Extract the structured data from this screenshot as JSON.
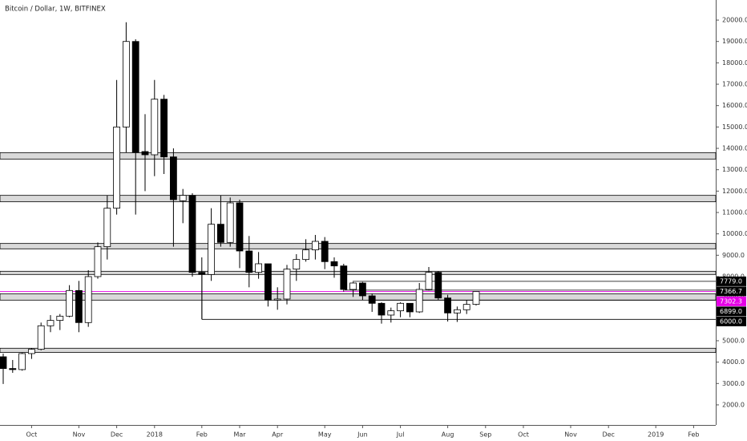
{
  "chart_data": {
    "type": "candlestick",
    "title": "Bitcoin / Dollar, 1W, BITFINEX",
    "categories": [
      null,
      null,
      null,
      "Oct",
      null,
      null,
      null,
      null,
      "Nov",
      null,
      null,
      null,
      "Dec",
      null,
      null,
      null,
      "2018",
      null,
      null,
      null,
      null,
      "Feb",
      null,
      null,
      null,
      "Mar",
      null,
      null,
      null,
      "Apr",
      null,
      null,
      null,
      null,
      "May",
      null,
      null,
      null,
      "Jun",
      null,
      null,
      null,
      "Jul",
      null,
      null,
      null,
      null,
      "Aug",
      null,
      null,
      null,
      "Sep",
      null,
      null,
      null,
      "Oct",
      null,
      null,
      null,
      null,
      "Nov",
      null,
      null,
      null,
      "Dec",
      null,
      null,
      null,
      null,
      "2019",
      null,
      null,
      null,
      "Feb"
    ],
    "open": [
      4250,
      3700,
      3650,
      4400,
      4600,
      5700,
      5950,
      6150,
      7350,
      5850,
      8000,
      9400,
      11200,
      15000,
      19000,
      13850,
      13700,
      16300,
      13600,
      11550,
      11800,
      8200,
      8100,
      10450,
      9600,
      11450,
      9200,
      8200,
      8600,
      6900,
      6950,
      8350,
      8800,
      9250,
      9650,
      8700,
      8500,
      7400,
      7700,
      7100,
      6750,
      6200,
      6400,
      6750,
      6350,
      7400,
      8200,
      7000,
      6300,
      6450,
      6700,
      null,
      null,
      null,
      null,
      null,
      null,
      null,
      null,
      null,
      null,
      null,
      null,
      null,
      null,
      null,
      null,
      null,
      null,
      null,
      null,
      null,
      null,
      null
    ],
    "high": [
      4400,
      4100,
      4450,
      4650,
      5850,
      6200,
      6250,
      7600,
      7800,
      8300,
      9600,
      11800,
      17200,
      19900,
      19100,
      15600,
      17200,
      16500,
      14000,
      12100,
      11900,
      8900,
      11200,
      11800,
      11700,
      11600,
      9900,
      9150,
      8600,
      7500,
      8550,
      9050,
      9750,
      9950,
      9850,
      8900,
      8600,
      7750,
      7750,
      7200,
      6800,
      6550,
      6800,
      6750,
      7700,
      8450,
      8250,
      7150,
      6600,
      6900,
      7300,
      null,
      null,
      null,
      null,
      null,
      null,
      null,
      null,
      null,
      null,
      null,
      null,
      null,
      null,
      null,
      null,
      null,
      null,
      null,
      null,
      null,
      null,
      null
    ],
    "low": [
      2980,
      3500,
      3600,
      4150,
      4550,
      5400,
      5500,
      6100,
      5400,
      5650,
      7900,
      8800,
      10900,
      13800,
      10900,
      12000,
      12700,
      12800,
      9400,
      10500,
      8000,
      6000,
      7800,
      9400,
      9400,
      8400,
      7500,
      7900,
      6600,
      6450,
      6700,
      7800,
      8700,
      8800,
      8350,
      7950,
      7300,
      7050,
      6900,
      6350,
      5800,
      5850,
      6100,
      6100,
      6300,
      7350,
      6900,
      5900,
      5880,
      6250,
      6650,
      null,
      null,
      null,
      null,
      null,
      null,
      null,
      null,
      null,
      null,
      null,
      null,
      null,
      null,
      null,
      null,
      null,
      null,
      null,
      null,
      null,
      null,
      null
    ],
    "close": [
      3700,
      3650,
      4400,
      4600,
      5700,
      5950,
      6150,
      7350,
      5850,
      8000,
      9400,
      11200,
      15000,
      19000,
      13800,
      13700,
      16300,
      13600,
      11600,
      11800,
      8200,
      8100,
      10450,
      9600,
      11450,
      9200,
      8200,
      8600,
      6900,
      6950,
      8350,
      8800,
      9250,
      9650,
      8700,
      8500,
      7400,
      7700,
      7100,
      6750,
      6200,
      6400,
      6750,
      6350,
      7400,
      8200,
      7000,
      6300,
      6450,
      6700,
      7302.3,
      null,
      null,
      null,
      null,
      null,
      null,
      null,
      null,
      null,
      null,
      null,
      null,
      null,
      null,
      null,
      null,
      null,
      null,
      null,
      null,
      null,
      null,
      null
    ],
    "ylim": [
      1060,
      20940
    ],
    "yticks": [
      {
        "value": 2000,
        "label": "2000.0"
      },
      {
        "value": 3000,
        "label": "3000.0"
      },
      {
        "value": 4000,
        "label": "4000.0"
      },
      {
        "value": 5000,
        "label": "5000.0"
      },
      {
        "value": 6000,
        "label": "6000.0"
      },
      {
        "value": 7000,
        "label": "7000.0"
      },
      {
        "value": 8000,
        "label": "8000.0"
      },
      {
        "value": 9000,
        "label": "9000.0"
      },
      {
        "value": 10000,
        "label": "10000.0"
      },
      {
        "value": 11000,
        "label": "11000.0"
      },
      {
        "value": 12000,
        "label": "12000.0"
      },
      {
        "value": 13000,
        "label": "13000.0"
      },
      {
        "value": 14000,
        "label": "14000.0"
      },
      {
        "value": 15000,
        "label": "15000.0"
      },
      {
        "value": 16000,
        "label": "16000.0"
      },
      {
        "value": 17000,
        "label": "17000.0"
      },
      {
        "value": 18000,
        "label": "18000.0"
      },
      {
        "value": 19000,
        "label": "19000.0"
      },
      {
        "value": 20000,
        "label": "20000.0"
      }
    ],
    "grid": false,
    "up_color": "#ffffff",
    "down_color": "#000000",
    "outline_color": "#000000",
    "zone_color": "#d9d9d9",
    "zones": [
      [
        13500,
        13800
      ],
      [
        11500,
        11800
      ],
      [
        9300,
        9550
      ],
      [
        8100,
        8250
      ],
      [
        6900,
        7200
      ],
      [
        4450,
        4650
      ]
    ],
    "levels": [
      {
        "value": 7779,
        "label": "7779.0",
        "color": "#000000"
      },
      {
        "value": 7366.7,
        "label": "7366.7",
        "color": "#000000"
      },
      {
        "value": 7302.3,
        "label": "7302.3",
        "color": "#e600e6"
      },
      {
        "value": 6899,
        "label": "6899.0",
        "color": "#000000"
      },
      {
        "value": 6000,
        "label": "6000.0",
        "color": "#000000"
      }
    ]
  }
}
